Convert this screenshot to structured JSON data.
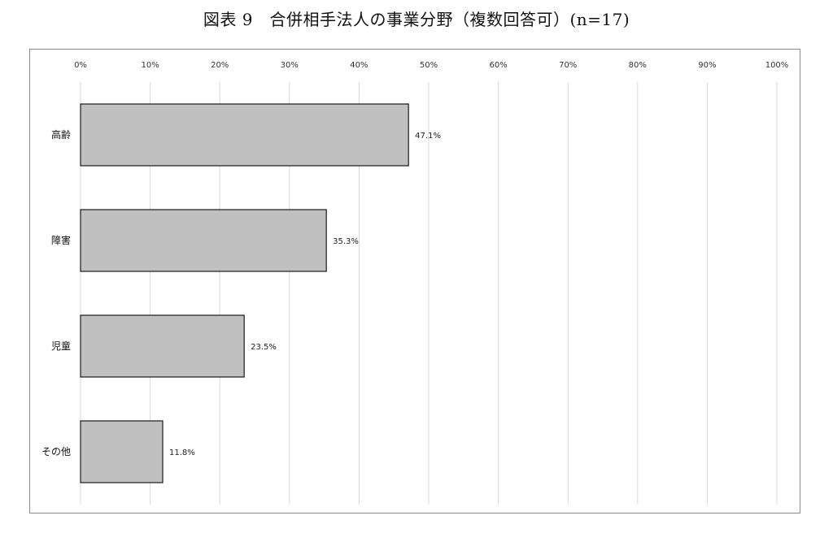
{
  "title": "図表 9　合併相手法人の事業分野（複数回答可）(n=17)",
  "chart_data": {
    "type": "bar",
    "orientation": "horizontal",
    "categories": [
      "高齢",
      "障害",
      "児童",
      "その他"
    ],
    "values": [
      47.1,
      35.3,
      23.5,
      11.8
    ],
    "value_labels": [
      "47.1%",
      "35.3%",
      "23.5%",
      "11.8%"
    ],
    "x_ticks": [
      "0%",
      "10%",
      "20%",
      "30%",
      "40%",
      "50%",
      "60%",
      "70%",
      "80%",
      "90%",
      "100%"
    ],
    "xlim": [
      0,
      100
    ],
    "x_axis_position": "top",
    "grid": true,
    "legend": "none",
    "bar_color": "#c0c0c0",
    "bar_edge_color": "#1a1a1a",
    "grid_color": "#d9d9d9"
  }
}
